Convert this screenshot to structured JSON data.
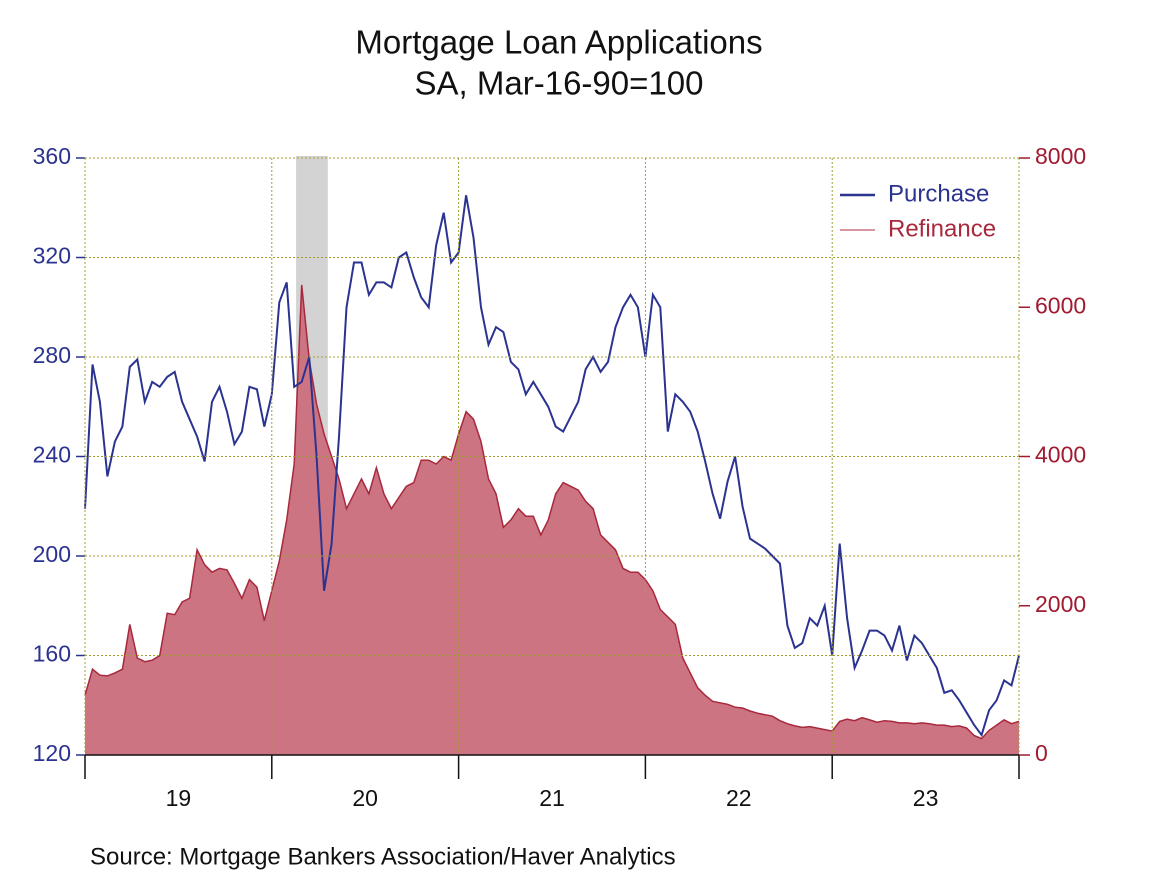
{
  "chart_data": {
    "type": "line",
    "title": "Mortgage Loan Applications",
    "subtitle": "SA, Mar-16-90=100",
    "source": "Source:  Mortgage Bankers Association/Haver Analytics",
    "x": [
      19,
      19.04,
      19.08,
      19.12,
      19.16,
      19.2,
      19.24,
      19.28,
      19.32,
      19.36,
      19.4,
      19.44,
      19.48,
      19.52,
      19.56,
      19.6,
      19.64,
      19.68,
      19.72,
      19.76,
      19.8,
      19.84,
      19.88,
      19.92,
      19.96,
      20,
      20.04,
      20.08,
      20.12,
      20.16,
      20.2,
      20.24,
      20.28,
      20.32,
      20.36,
      20.4,
      20.44,
      20.48,
      20.52,
      20.56,
      20.6,
      20.64,
      20.68,
      20.72,
      20.76,
      20.8,
      20.84,
      20.88,
      20.92,
      20.96,
      21,
      21.04,
      21.08,
      21.12,
      21.16,
      21.2,
      21.24,
      21.28,
      21.32,
      21.36,
      21.4,
      21.44,
      21.48,
      21.52,
      21.56,
      21.6,
      21.64,
      21.68,
      21.72,
      21.76,
      21.8,
      21.84,
      21.88,
      21.92,
      21.96,
      22,
      22.04,
      22.08,
      22.12,
      22.16,
      22.2,
      22.24,
      22.28,
      22.32,
      22.36,
      22.4,
      22.44,
      22.48,
      22.52,
      22.56,
      22.6,
      22.64,
      22.68,
      22.72,
      22.76,
      22.8,
      22.84,
      22.88,
      22.92,
      22.96,
      23,
      23.04,
      23.08,
      23.12,
      23.16,
      23.2,
      23.24,
      23.28,
      23.32,
      23.36,
      23.4,
      23.44,
      23.48,
      23.52,
      23.56,
      23.6,
      23.64,
      23.68,
      23.72,
      23.76,
      23.8,
      23.84,
      23.88,
      23.92,
      23.96,
      24
    ],
    "series": [
      {
        "name": "Purchase",
        "color": "#2b3390",
        "axis": "y",
        "style": "line",
        "values": [
          219,
          277,
          262,
          232,
          246,
          252,
          276,
          279,
          262,
          270,
          268,
          272,
          274,
          262,
          255,
          248,
          238,
          262,
          268,
          258,
          245,
          250,
          268,
          267,
          252,
          265,
          302,
          310,
          268,
          270,
          280,
          240,
          186,
          205,
          248,
          300,
          318,
          318,
          305,
          310,
          310,
          308,
          320,
          322,
          312,
          304,
          300,
          325,
          338,
          318,
          322,
          345,
          328,
          300,
          285,
          292,
          290,
          278,
          275,
          265,
          270,
          265,
          260,
          252,
          250,
          256,
          262,
          275,
          280,
          274,
          278,
          292,
          300,
          305,
          300,
          280,
          305,
          300,
          250,
          265,
          262,
          258,
          250,
          238,
          225,
          215,
          230,
          240,
          220,
          207,
          205,
          203,
          200,
          197,
          172,
          163,
          165,
          175,
          172,
          180,
          160,
          205,
          175,
          155,
          162,
          170,
          170,
          168,
          162,
          172,
          158,
          168,
          165,
          160,
          155,
          145,
          146,
          142,
          137,
          132,
          128,
          138,
          142,
          150,
          148,
          160
        ]
      },
      {
        "name": "Refinance",
        "color": "#a8283c",
        "fill": "#cc7482",
        "axis": "y2",
        "style": "area",
        "values": [
          800,
          1150,
          1070,
          1060,
          1100,
          1150,
          1750,
          1300,
          1250,
          1270,
          1330,
          1900,
          1880,
          2050,
          2100,
          2750,
          2550,
          2450,
          2500,
          2480,
          2300,
          2100,
          2350,
          2250,
          1800,
          2200,
          2600,
          3150,
          3900,
          6300,
          5300,
          4700,
          4300,
          4000,
          3700,
          3300,
          3500,
          3700,
          3500,
          3850,
          3500,
          3300,
          3450,
          3600,
          3650,
          3950,
          3950,
          3900,
          4000,
          3950,
          4300,
          4600,
          4500,
          4200,
          3700,
          3500,
          3050,
          3150,
          3300,
          3200,
          3200,
          2950,
          3150,
          3500,
          3650,
          3600,
          3550,
          3400,
          3300,
          2950,
          2850,
          2750,
          2500,
          2450,
          2450,
          2350,
          2200,
          1950,
          1850,
          1750,
          1300,
          1100,
          900,
          800,
          720,
          700,
          680,
          640,
          630,
          590,
          560,
          540,
          520,
          460,
          420,
          390,
          370,
          380,
          360,
          340,
          320,
          450,
          480,
          460,
          500,
          470,
          440,
          460,
          450,
          430,
          430,
          420,
          430,
          420,
          400,
          400,
          380,
          390,
          360,
          260,
          220,
          330,
          400,
          470,
          420,
          450
        ]
      }
    ],
    "xlim": [
      19,
      24
    ],
    "xticks": [
      {
        "value": 19.5,
        "label": "19"
      },
      {
        "value": 20.5,
        "label": "20"
      },
      {
        "value": 21.5,
        "label": "21"
      },
      {
        "value": 22.5,
        "label": "22"
      },
      {
        "value": 23.5,
        "label": "23"
      }
    ],
    "xgrid": [
      19,
      20,
      21,
      22,
      23,
      24
    ],
    "ylim": [
      120,
      360
    ],
    "yticks": [
      120,
      160,
      200,
      240,
      280,
      320,
      360
    ],
    "y2lim": [
      0,
      8000
    ],
    "y2ticks": [
      0,
      2000,
      4000,
      6000,
      8000
    ],
    "recession": [
      20.13,
      20.3
    ],
    "recession_color": "#d3d3d3",
    "y_color": "#2b3390",
    "y2_color": "#a01a30",
    "grid_color": "#a0a030",
    "grid": true,
    "legend": "upper right"
  }
}
